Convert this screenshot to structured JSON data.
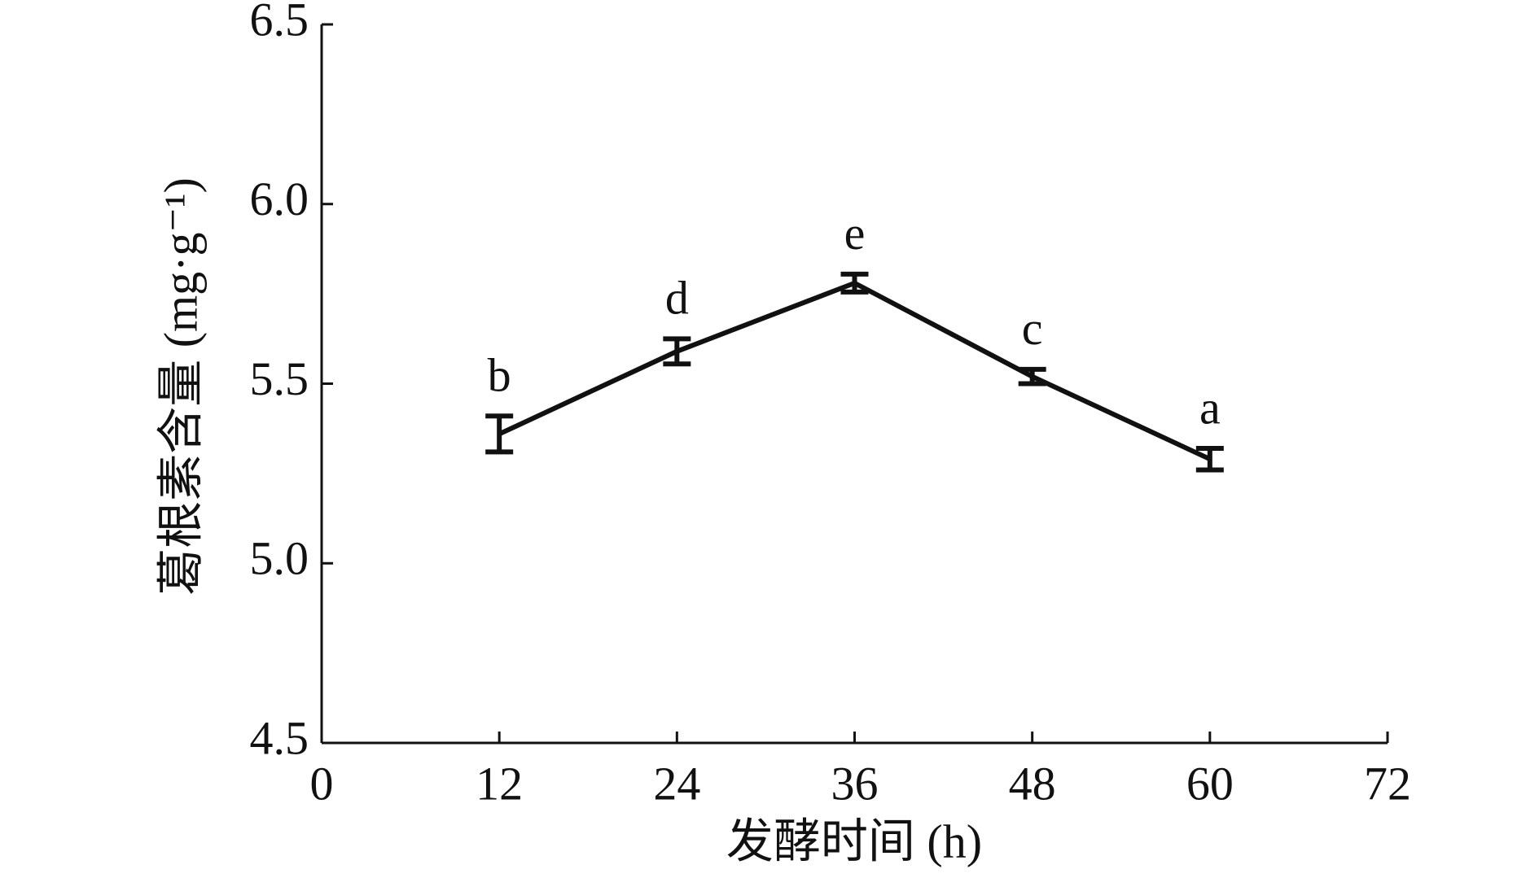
{
  "chart_data": {
    "type": "line",
    "x_label": "发酵时间 (h)",
    "y_label": "葛根素含量 (mg·g⁻¹)",
    "x": [
      12,
      24,
      36,
      48,
      60
    ],
    "series": [
      {
        "color": "#111111",
        "values": [
          5.36,
          5.59,
          5.78,
          5.52,
          5.29
        ],
        "errors": [
          0.05,
          0.035,
          0.025,
          0.02,
          0.03
        ],
        "labels": [
          "b",
          "d",
          "e",
          "c",
          "a"
        ]
      }
    ],
    "xlim": [
      0,
      72
    ],
    "xticks": [
      0,
      12,
      24,
      36,
      48,
      60,
      72
    ],
    "ylim": [
      4.5,
      6.5
    ],
    "yticks": [
      4.5,
      {
        "value": 5,
        "label": "5.0"
      },
      5.5,
      {
        "value": 6,
        "label": "6.0"
      },
      6.5
    ]
  }
}
